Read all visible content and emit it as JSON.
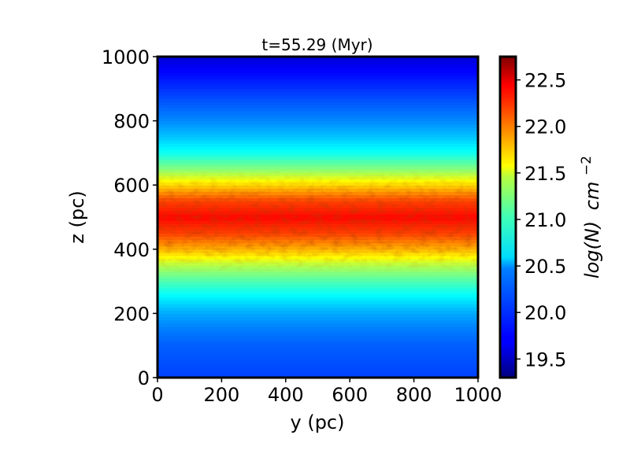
{
  "chart_data": {
    "type": "heatmap",
    "title": "t=55.29 (Myr)",
    "xlabel": "y (pc)",
    "ylabel": "z (pc)",
    "xlim": [
      0,
      1000
    ],
    "ylim": [
      0,
      1000
    ],
    "x_ticks": [
      "0",
      "200",
      "400",
      "600",
      "800",
      "1000"
    ],
    "y_ticks": [
      "0",
      "200",
      "400",
      "600",
      "800",
      "1000"
    ],
    "x_tick_values": [
      0,
      200,
      400,
      600,
      800,
      1000
    ],
    "y_tick_values": [
      0,
      200,
      400,
      600,
      800,
      1000
    ],
    "colorbar": {
      "label_main": "log(N)",
      "label_unit": "cm",
      "label_exp": "−2",
      "range": [
        19.3,
        22.75
      ],
      "colormap": "jet",
      "ticks": [
        "19.5",
        "20.0",
        "20.5",
        "21.0",
        "21.5",
        "22.0",
        "22.5"
      ],
      "tick_values": [
        19.5,
        20.0,
        20.5,
        21.0,
        21.5,
        22.0,
        22.5
      ]
    },
    "profile": {
      "description_units": "z (pc) vs log(N) approximate vertical column density profile, y-averaged",
      "z": [
        0,
        50,
        100,
        150,
        200,
        250,
        300,
        350,
        400,
        450,
        500,
        550,
        600,
        650,
        700,
        750,
        800,
        850,
        900,
        950,
        1000
      ],
      "logN": [
        19.95,
        20.0,
        20.05,
        20.15,
        20.3,
        20.55,
        20.85,
        21.2,
        21.7,
        22.1,
        22.3,
        22.1,
        21.6,
        21.05,
        20.65,
        20.4,
        20.2,
        20.05,
        19.9,
        19.75,
        19.6
      ]
    }
  }
}
